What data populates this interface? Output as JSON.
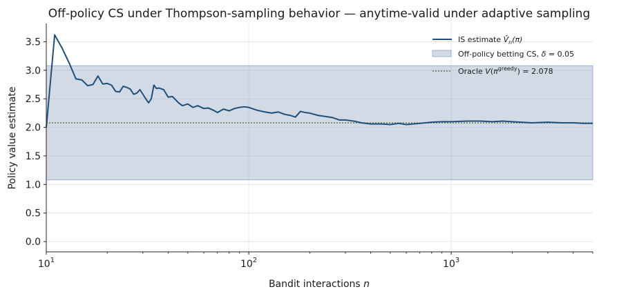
{
  "chart_data": {
    "type": "line",
    "title": "Off-policy CS under Thompson-sampling behavior — anytime-valid under adaptive sampling",
    "xlabel": "Bandit interactions n",
    "ylabel": "Policy value estimate",
    "xscale": "log",
    "xlim": [
      10,
      5000
    ],
    "ylim": [
      -0.18,
      3.82
    ],
    "grid": true,
    "legend_position": "top-right",
    "x_ticks": [
      {
        "value": 10,
        "base": "10",
        "exp": "1"
      },
      {
        "value": 100,
        "base": "10",
        "exp": "2"
      },
      {
        "value": 1000,
        "base": "10",
        "exp": "3"
      }
    ],
    "y_ticks": [
      {
        "value": 0.0,
        "label": "0.0"
      },
      {
        "value": 0.5,
        "label": "0.5"
      },
      {
        "value": 1.0,
        "label": "1.0"
      },
      {
        "value": 1.5,
        "label": "1.5"
      },
      {
        "value": 2.0,
        "label": "2.0"
      },
      {
        "value": 2.5,
        "label": "2.5"
      },
      {
        "value": 3.0,
        "label": "3.0"
      },
      {
        "value": 3.5,
        "label": "3.5"
      }
    ],
    "series": [
      {
        "name": "IS estimate V̂n(π)",
        "color": "#1f4e79",
        "points": [
          [
            10,
            2.0
          ],
          [
            11,
            3.62
          ],
          [
            12,
            3.38
          ],
          [
            13,
            3.12
          ],
          [
            14,
            2.85
          ],
          [
            15,
            2.83
          ],
          [
            16,
            2.73
          ],
          [
            17,
            2.75
          ],
          [
            18,
            2.9
          ],
          [
            19,
            2.76
          ],
          [
            20,
            2.77
          ],
          [
            21,
            2.74
          ],
          [
            22,
            2.63
          ],
          [
            23,
            2.62
          ],
          [
            24,
            2.72
          ],
          [
            25,
            2.7
          ],
          [
            26,
            2.67
          ],
          [
            27,
            2.58
          ],
          [
            28,
            2.6
          ],
          [
            29,
            2.66
          ],
          [
            30,
            2.58
          ],
          [
            31,
            2.5
          ],
          [
            32,
            2.43
          ],
          [
            33,
            2.5
          ],
          [
            34,
            2.74
          ],
          [
            35,
            2.68
          ],
          [
            36,
            2.69
          ],
          [
            38,
            2.66
          ],
          [
            40,
            2.53
          ],
          [
            42,
            2.54
          ],
          [
            45,
            2.43
          ],
          [
            47,
            2.38
          ],
          [
            50,
            2.41
          ],
          [
            53,
            2.35
          ],
          [
            56,
            2.38
          ],
          [
            60,
            2.33
          ],
          [
            63,
            2.34
          ],
          [
            67,
            2.3
          ],
          [
            70,
            2.26
          ],
          [
            75,
            2.32
          ],
          [
            80,
            2.29
          ],
          [
            85,
            2.33
          ],
          [
            90,
            2.35
          ],
          [
            95,
            2.36
          ],
          [
            100,
            2.35
          ],
          [
            110,
            2.3
          ],
          [
            120,
            2.27
          ],
          [
            130,
            2.25
          ],
          [
            140,
            2.27
          ],
          [
            150,
            2.23
          ],
          [
            160,
            2.21
          ],
          [
            170,
            2.18
          ],
          [
            180,
            2.28
          ],
          [
            190,
            2.26
          ],
          [
            200,
            2.25
          ],
          [
            220,
            2.21
          ],
          [
            240,
            2.19
          ],
          [
            260,
            2.17
          ],
          [
            280,
            2.13
          ],
          [
            300,
            2.13
          ],
          [
            330,
            2.11
          ],
          [
            360,
            2.08
          ],
          [
            400,
            2.06
          ],
          [
            450,
            2.06
          ],
          [
            500,
            2.05
          ],
          [
            550,
            2.07
          ],
          [
            600,
            2.05
          ],
          [
            700,
            2.07
          ],
          [
            800,
            2.09
          ],
          [
            900,
            2.1
          ],
          [
            1000,
            2.1
          ],
          [
            1200,
            2.11
          ],
          [
            1400,
            2.11
          ],
          [
            1600,
            2.1
          ],
          [
            1800,
            2.11
          ],
          [
            2000,
            2.1
          ],
          [
            2500,
            2.08
          ],
          [
            3000,
            2.09
          ],
          [
            3500,
            2.08
          ],
          [
            4000,
            2.08
          ],
          [
            4500,
            2.07
          ],
          [
            5000,
            2.07
          ]
        ]
      }
    ],
    "band": {
      "name": "Off-policy betting CS, δ = 0.05",
      "x": [
        10,
        5000
      ],
      "lower": 1.08,
      "upper": 3.08,
      "color": "#8ea6bf"
    },
    "reference_line": {
      "name": "Oracle V(π^greedy) = 2.078",
      "value": 2.078,
      "color": "#5b7f55"
    }
  }
}
